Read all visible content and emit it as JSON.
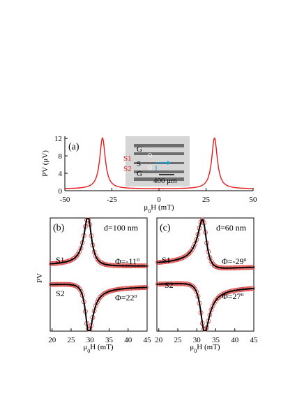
{
  "colors": {
    "curve_red": "#e41a1c",
    "fit_black": "#000000",
    "marker_red": "#e05050",
    "inset_bg": "#d6d6d6",
    "strip": "#6e6e6e",
    "arrow_cyan": "#1aa0d8",
    "inset_text_red": "#e41a1c"
  },
  "chart_data": [
    {
      "id": "a",
      "type": "line",
      "panel_label": "(a)",
      "xlabel_main": "μ",
      "xlabel_sub": "0",
      "xlabel_rest": "H (mT)",
      "ylabel": "PV (μV)",
      "xlim": [
        -50,
        50
      ],
      "ylim": [
        0,
        12.5
      ],
      "xticks": [
        "-50",
        "-25",
        "0",
        "25",
        "50"
      ],
      "xtick_values": [
        -50,
        -25,
        0,
        25,
        50
      ],
      "yticks": [
        "0",
        "4",
        "8",
        "12"
      ],
      "ytick_values": [
        0,
        4,
        8,
        12
      ],
      "series": [
        {
          "peaks": [
            -30,
            29.5
          ],
          "amplitude": 11.7,
          "width": 1.8,
          "baseline": 0.4
        }
      ],
      "inset": {
        "labels": [
          "G",
          "S1",
          "S",
          "S2",
          "G"
        ],
        "scale_bar": "400 μm"
      }
    },
    {
      "id": "b",
      "type": "scatter",
      "panel_label": "(b)",
      "note": "d=100 nm",
      "ylabel": "PV",
      "xlabel_main": "μ",
      "xlabel_sub": "0",
      "xlabel_rest": "H (mT)",
      "xlim": [
        19.5,
        45
      ],
      "xticks": [
        "20",
        "25",
        "30",
        "35",
        "40",
        "45"
      ],
      "xtick_values": [
        20,
        25,
        30,
        35,
        40,
        45
      ],
      "center": 29.5,
      "width": 1.2,
      "series": [
        {
          "name": "S1",
          "phi_main": "Φ=-11",
          "phi_sup": "o",
          "offset": 0.58,
          "sign": 1,
          "phi_deg": -11
        },
        {
          "name": "S2",
          "phi_main": "Φ=22",
          "phi_sup": "o",
          "offset": 0.4,
          "sign": -1,
          "phi_deg": 22
        }
      ]
    },
    {
      "id": "c",
      "type": "scatter",
      "panel_label": "(c)",
      "note": "d=60 nm",
      "xlabel_main": "μ",
      "xlabel_sub": "0",
      "xlabel_rest": "H (mT)",
      "xlim": [
        19.5,
        45
      ],
      "xticks": [
        "20",
        "25",
        "30",
        "35",
        "40",
        "45"
      ],
      "xtick_values": [
        20,
        25,
        30,
        35,
        40,
        45
      ],
      "center": 31.8,
      "width": 1.4,
      "series": [
        {
          "name": "S1",
          "phi_main": "Φ=-29",
          "phi_sup": "o",
          "offset": 0.58,
          "sign": 1,
          "phi_deg": -29
        },
        {
          "name": "S2",
          "phi_main": "Φ=27",
          "phi_sup": "o",
          "offset": 0.4,
          "sign": -1,
          "phi_deg": 27
        }
      ]
    }
  ]
}
